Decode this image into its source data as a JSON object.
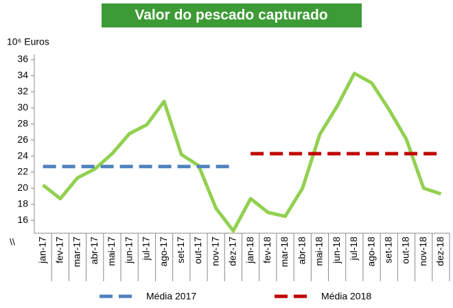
{
  "chart_data": {
    "type": "line",
    "title": "Valor do pescado capturado",
    "y_label": "10⁶ Euros",
    "axis_break": "\\\\",
    "categories": [
      "jan-17",
      "fev-17",
      "mar-17",
      "abr-17",
      "mai-17",
      "jun-17",
      "jul-17",
      "ago-17",
      "set-17",
      "out-17",
      "nov-17",
      "dez-17",
      "jan-18",
      "fev-18",
      "mar-18",
      "abr-18",
      "mai-18",
      "jun-18",
      "jul-18",
      "ago-18",
      "set-18",
      "out-18",
      "nov-18",
      "dez-18"
    ],
    "series": [
      {
        "color": "#92d050",
        "values": [
          20.4,
          18.7,
          21.3,
          22.4,
          24.3,
          26.8,
          27.9,
          30.8,
          24.2,
          22.8,
          17.5,
          14.7,
          18.7,
          17.0,
          16.5,
          20.0,
          26.7,
          30.2,
          34.3,
          33.1,
          29.8,
          26.1,
          20.0,
          19.3
        ]
      },
      {
        "name": "Média 2017",
        "color": "#4f81bd",
        "dashed": true,
        "values": [
          22.7,
          22.7,
          22.7,
          22.7,
          22.7,
          22.7,
          22.7,
          22.7,
          22.7,
          22.7,
          22.7,
          22.7,
          null,
          null,
          null,
          null,
          null,
          null,
          null,
          null,
          null,
          null,
          null,
          null
        ]
      },
      {
        "name": "Média 2018",
        "color": "#c00000",
        "dashed": true,
        "values": [
          null,
          null,
          null,
          null,
          null,
          null,
          null,
          null,
          null,
          null,
          null,
          null,
          24.3,
          24.3,
          24.3,
          24.3,
          24.3,
          24.3,
          24.3,
          24.3,
          24.3,
          24.3,
          24.3,
          24.3
        ]
      }
    ],
    "ylim": [
      14.4,
      36
    ],
    "yticks": [
      16,
      18,
      20,
      22,
      24,
      26,
      28,
      30,
      32,
      34,
      36
    ],
    "grid": false,
    "legend": "bottom"
  }
}
